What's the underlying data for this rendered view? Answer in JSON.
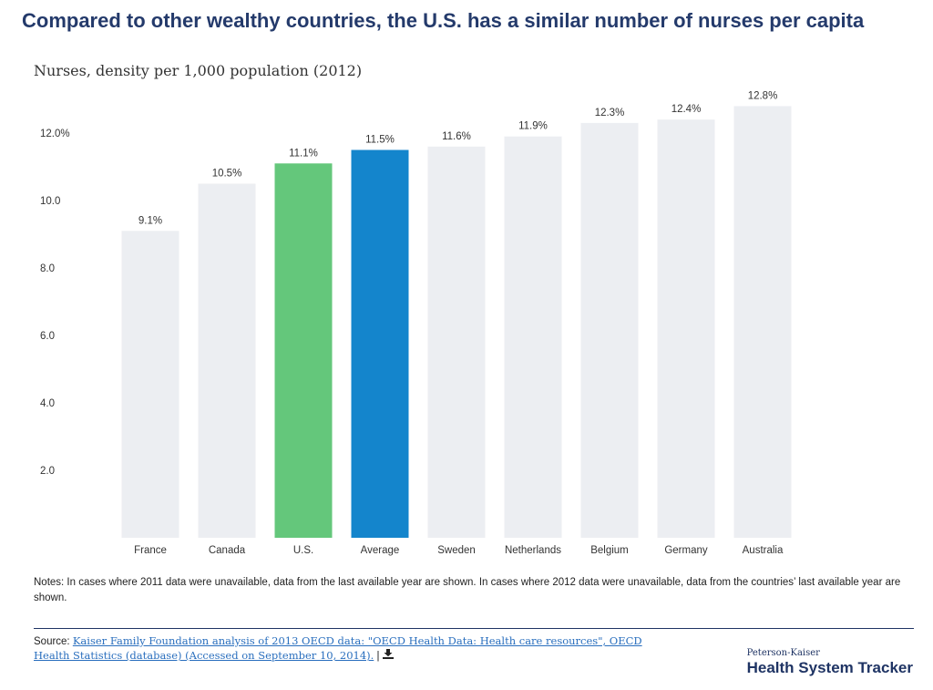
{
  "title": "Compared to other wealthy countries, the U.S. has a similar number of nurses per capita",
  "subtitle": "Nurses, density per 1,000 population (2012)",
  "chart_data": {
    "type": "bar",
    "categories": [
      "France",
      "Canada",
      "U.S.",
      "Average",
      "Sweden",
      "Netherlands",
      "Belgium",
      "Germany",
      "Australia"
    ],
    "values": [
      9.1,
      10.5,
      11.1,
      11.5,
      11.6,
      11.9,
      12.3,
      12.4,
      12.8
    ],
    "value_labels": [
      "9.1%",
      "10.5%",
      "11.1%",
      "11.5%",
      "11.6%",
      "11.9%",
      "12.3%",
      "12.4%",
      "12.8%"
    ],
    "bar_colors": [
      "#eceef2",
      "#eceef2",
      "#64c77b",
      "#1485cc",
      "#eceef2",
      "#eceef2",
      "#eceef2",
      "#eceef2",
      "#eceef2"
    ],
    "y_ticks": [
      2,
      4,
      6,
      8,
      10,
      12
    ],
    "y_tick_labels": [
      "2.0",
      "4.0",
      "6.0",
      "8.0",
      "10.0",
      "12.0%"
    ],
    "ylim": [
      0,
      12.8
    ],
    "grid": false,
    "xlabel": "",
    "ylabel": ""
  },
  "notes": "Notes: In cases where 2011 data were unavailable, data from the last available year are shown. In cases where 2012 data were unavailable, data from the countries’ last available year are shown.",
  "source": {
    "prefix": "Source: ",
    "link_text": "Kaiser Family Foundation analysis of 2013 OECD data: \"OECD Health Data: Health care resources\", OECD Health Statistics (database) (Accessed on September 10, 2014).",
    "separator": " | ",
    "download_icon": "download-icon"
  },
  "brand": {
    "top": "Peterson-Kaiser",
    "main": "Health System Tracker"
  }
}
